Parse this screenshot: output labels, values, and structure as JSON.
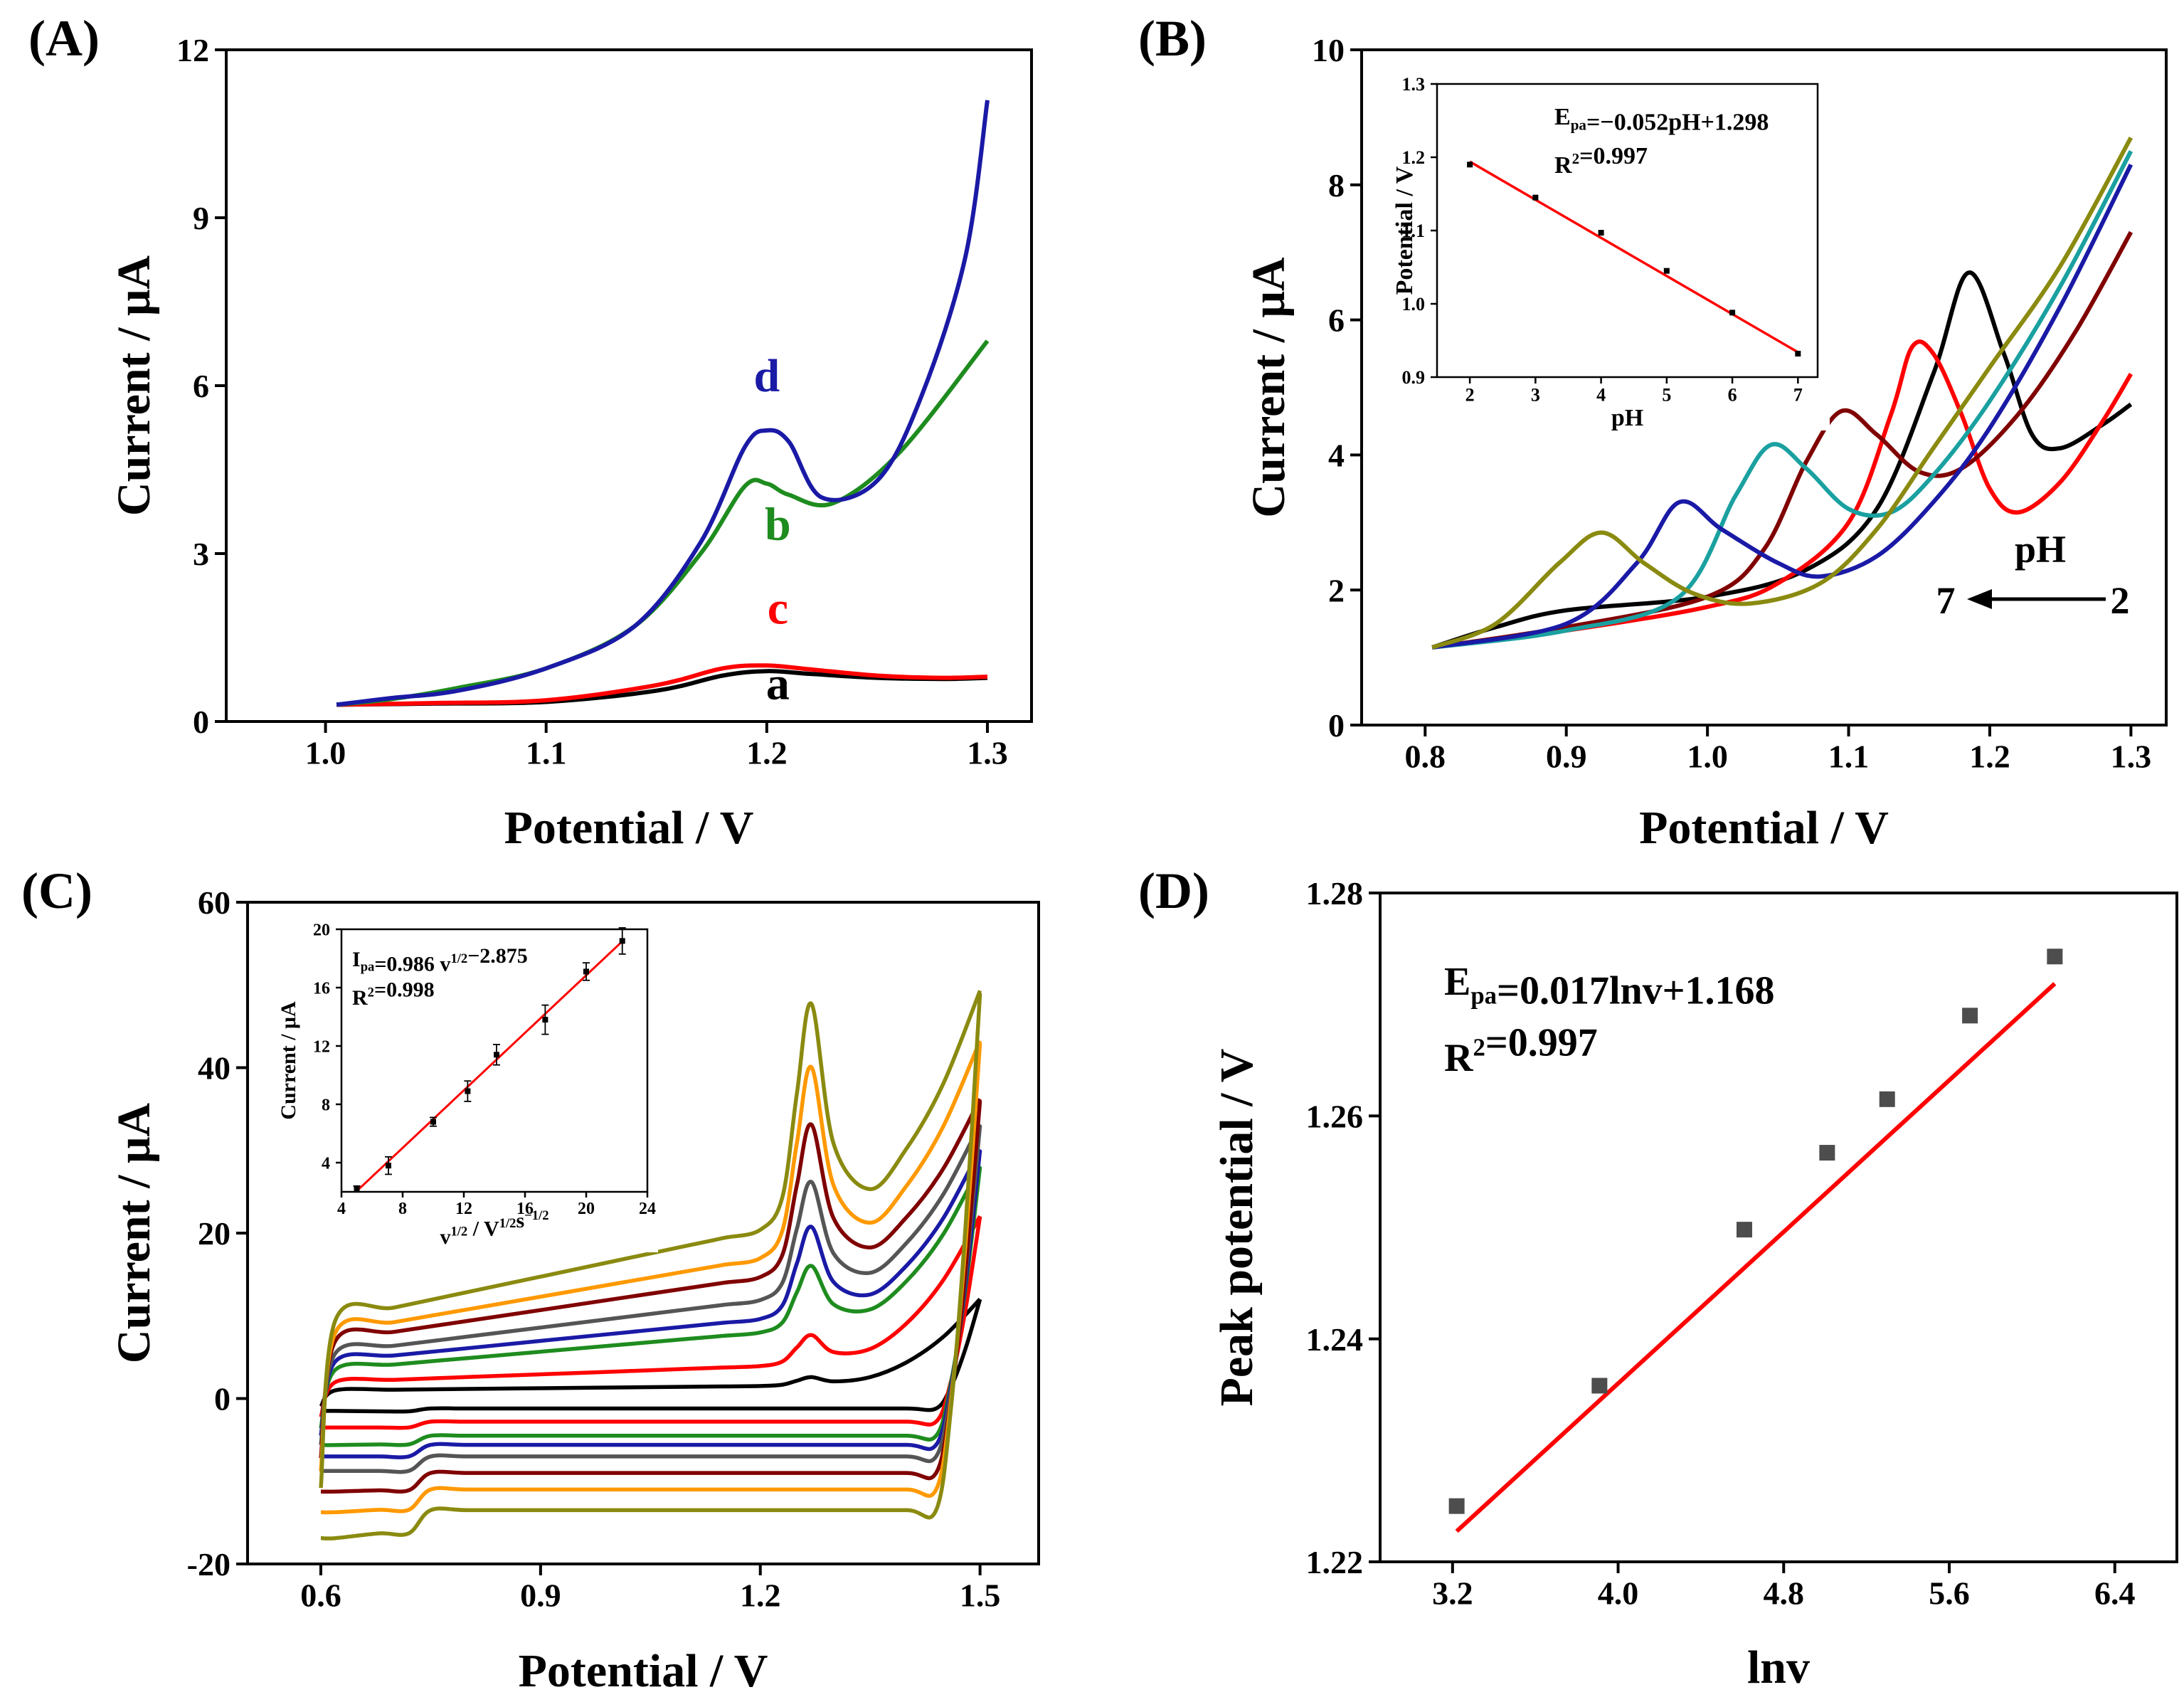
{
  "figure_kind": "four-panel electrochemistry figure",
  "chart_data": [
    {
      "panel": "(A)",
      "type": "line",
      "xlabel": "Potential / V",
      "ylabel": "Current / μA",
      "xlim": [
        0.955,
        1.32
      ],
      "ylim": [
        0,
        12
      ],
      "xticks": [
        1.0,
        1.1,
        1.2,
        1.3
      ],
      "yticks": [
        0,
        3,
        6,
        9,
        12
      ],
      "xtick_labels": [
        "1.0",
        "1.1",
        "1.2",
        "1.3"
      ],
      "ytick_labels": [
        "0",
        "3",
        "6",
        "9",
        "12"
      ],
      "series": [
        {
          "name": "a",
          "color": "#000000",
          "x": [
            1.005,
            1.05,
            1.1,
            1.15,
            1.18,
            1.2,
            1.22,
            1.25,
            1.28,
            1.3
          ],
          "y": [
            0.3,
            0.32,
            0.35,
            0.55,
            0.82,
            0.9,
            0.85,
            0.78,
            0.76,
            0.78
          ]
        },
        {
          "name": "c",
          "color": "#ff0000",
          "x": [
            1.005,
            1.05,
            1.1,
            1.15,
            1.18,
            1.2,
            1.22,
            1.25,
            1.28,
            1.3
          ],
          "y": [
            0.3,
            0.33,
            0.38,
            0.65,
            0.95,
            1.0,
            0.93,
            0.82,
            0.78,
            0.8
          ]
        },
        {
          "name": "b",
          "color": "#1e8c1e",
          "x": [
            1.005,
            1.03,
            1.06,
            1.1,
            1.14,
            1.17,
            1.19,
            1.2,
            1.21,
            1.23,
            1.26,
            1.3
          ],
          "y": [
            0.3,
            0.4,
            0.6,
            0.95,
            1.7,
            3.0,
            4.2,
            4.25,
            4.05,
            3.9,
            4.8,
            6.8
          ]
        },
        {
          "name": "d",
          "color": "#1a1aa6",
          "x": [
            1.005,
            1.03,
            1.06,
            1.1,
            1.14,
            1.17,
            1.19,
            1.2,
            1.21,
            1.225,
            1.25,
            1.27,
            1.29,
            1.3
          ],
          "y": [
            0.3,
            0.42,
            0.55,
            0.95,
            1.7,
            3.2,
            4.9,
            5.2,
            5.0,
            4.0,
            4.3,
            5.8,
            8.3,
            11.1
          ]
        }
      ],
      "curve_labels": [
        {
          "text": "d",
          "x": 1.2,
          "y": 5.9,
          "color": "#1a1aa6"
        },
        {
          "text": "b",
          "x": 1.205,
          "y": 3.25,
          "color": "#1e8c1e"
        },
        {
          "text": "c",
          "x": 1.205,
          "y": 1.75,
          "color": "#ff0000"
        },
        {
          "text": "a",
          "x": 1.205,
          "y": 0.4,
          "color": "#000000"
        }
      ]
    },
    {
      "panel": "(B)",
      "type": "line",
      "xlabel": "Potential / V",
      "ylabel": "Current / μA",
      "xlim": [
        0.755,
        1.325
      ],
      "ylim": [
        0,
        10
      ],
      "xticks": [
        0.8,
        0.9,
        1.0,
        1.1,
        1.2,
        1.3
      ],
      "yticks": [
        0,
        2,
        4,
        6,
        8,
        10
      ],
      "xtick_labels": [
        "0.8",
        "0.9",
        "1.0",
        "1.1",
        "1.2",
        "1.3"
      ],
      "ytick_labels": [
        "0",
        "2",
        "4",
        "6",
        "8",
        "10"
      ],
      "series": [
        {
          "name": "pH 2",
          "color": "#000000",
          "x": [
            0.805,
            0.85,
            0.9,
            1.0,
            1.07,
            1.12,
            1.16,
            1.185,
            1.21,
            1.23,
            1.25,
            1.28,
            1.3
          ],
          "y": [
            1.15,
            1.45,
            1.7,
            1.9,
            2.3,
            3.2,
            5.2,
            6.7,
            5.5,
            4.3,
            4.1,
            4.45,
            4.75
          ]
        },
        {
          "name": "pH 3",
          "color": "#ff0000",
          "x": [
            0.805,
            0.9,
            1.0,
            1.05,
            1.1,
            1.13,
            1.145,
            1.16,
            1.18,
            1.2,
            1.22,
            1.25,
            1.28,
            1.3
          ],
          "y": [
            1.15,
            1.4,
            1.75,
            2.1,
            3.0,
            4.6,
            5.6,
            5.5,
            4.6,
            3.5,
            3.15,
            3.6,
            4.5,
            5.2
          ]
        },
        {
          "name": "pH 4",
          "color": "#800000",
          "x": [
            0.805,
            0.9,
            1.0,
            1.04,
            1.07,
            1.095,
            1.12,
            1.15,
            1.18,
            1.22,
            1.26,
            1.3
          ],
          "y": [
            1.15,
            1.45,
            1.9,
            2.6,
            3.9,
            4.65,
            4.3,
            3.75,
            3.8,
            4.6,
            5.8,
            7.3
          ]
        },
        {
          "name": "pH 5",
          "color": "#1aa0a0",
          "x": [
            0.805,
            0.9,
            0.98,
            1.02,
            1.045,
            1.07,
            1.1,
            1.13,
            1.16,
            1.2,
            1.25,
            1.3
          ],
          "y": [
            1.15,
            1.4,
            1.9,
            3.4,
            4.15,
            3.8,
            3.2,
            3.15,
            3.7,
            4.8,
            6.5,
            8.5
          ]
        },
        {
          "name": "pH 6",
          "color": "#1a1aa6",
          "x": [
            0.805,
            0.9,
            0.95,
            0.98,
            1.01,
            1.05,
            1.08,
            1.12,
            1.16,
            1.2,
            1.25,
            1.3
          ],
          "y": [
            1.15,
            1.5,
            2.4,
            3.3,
            2.9,
            2.4,
            2.2,
            2.5,
            3.3,
            4.4,
            6.2,
            8.3
          ]
        },
        {
          "name": "pH 7",
          "color": "#8a8a10",
          "x": [
            0.805,
            0.85,
            0.895,
            0.925,
            0.955,
            0.99,
            1.03,
            1.08,
            1.12,
            1.16,
            1.2,
            1.25,
            1.3
          ],
          "y": [
            1.15,
            1.5,
            2.4,
            2.85,
            2.4,
            1.95,
            1.8,
            2.1,
            2.9,
            4.1,
            5.3,
            6.8,
            8.7
          ]
        }
      ],
      "annotation_title": "pH",
      "annotation_left": "7",
      "annotation_right": "2",
      "inset": {
        "type": "scatter",
        "xlabel": "pH",
        "ylabel": "Potential / V",
        "xlim": [
          1.5,
          7.3
        ],
        "ylim": [
          0.9,
          1.3
        ],
        "xticks": [
          2,
          3,
          4,
          5,
          6,
          7
        ],
        "yticks": [
          0.9,
          1.0,
          1.1,
          1.2,
          1.3
        ],
        "xtick_labels": [
          "2",
          "3",
          "4",
          "5",
          "6",
          "7"
        ],
        "ytick_labels": [
          "0.9",
          "1.0",
          "1.1",
          "1.2",
          "1.3"
        ],
        "x": [
          2,
          3,
          4,
          5,
          6,
          7
        ],
        "y": [
          1.19,
          1.145,
          1.097,
          1.045,
          0.988,
          0.932
        ],
        "fit": {
          "slope": -0.052,
          "intercept": 1.298
        },
        "equation_label": "E",
        "equation_sub": "pa",
        "equation_rest": "=−0.052pH+1.298",
        "r2_main": "R",
        "r2_sup": "2",
        "r2_rest": "=0.997"
      }
    },
    {
      "panel": "(C)",
      "type": "line",
      "xlabel": "Potential / V",
      "ylabel": "Current / μA",
      "xlim": [
        0.5,
        1.58
      ],
      "ylim": [
        -20,
        60
      ],
      "xticks": [
        0.6,
        0.9,
        1.2,
        1.5
      ],
      "yticks": [
        -20,
        0,
        20,
        40,
        60
      ],
      "xtick_labels": [
        "0.6",
        "0.9",
        "1.2",
        "1.5"
      ],
      "ytick_labels": [
        "-20",
        "0",
        "20",
        "40",
        "60"
      ],
      "cv_scans": [
        {
          "color": "#000000",
          "base_up": 1.0,
          "slope": 0.4,
          "peak": 1.0,
          "base_down": -1.2,
          "end_up": 12
        },
        {
          "color": "#ff0000",
          "base_up": 2.0,
          "slope": 1.5,
          "peak": 3.5,
          "base_down": -2.8,
          "end_up": 22
        },
        {
          "color": "#1e8c1e",
          "base_up": 3.5,
          "slope": 3.5,
          "peak": 7.5,
          "base_down": -4.5,
          "end_up": 28
        },
        {
          "color": "#1a1aa6",
          "base_up": 4.5,
          "slope": 4.0,
          "peak": 10.5,
          "base_down": -5.6,
          "end_up": 30
        },
        {
          "color": "#555555",
          "base_up": 5.5,
          "slope": 5.0,
          "peak": 13.5,
          "base_down": -7.0,
          "end_up": 33
        },
        {
          "color": "#800000",
          "base_up": 7.0,
          "slope": 6.0,
          "peak": 17.5,
          "base_down": -9.0,
          "end_up": 36
        },
        {
          "color": "#ff9900",
          "base_up": 8.0,
          "slope": 7.0,
          "peak": 22.0,
          "base_down": -11.0,
          "end_up": 43
        },
        {
          "color": "#8a8a10",
          "base_up": 9.5,
          "slope": 8.5,
          "peak": 26.0,
          "base_down": -13.5,
          "end_up": 49
        }
      ],
      "inset": {
        "type": "scatter",
        "xlabel_main": "v",
        "xlabel_sup1": "1/2",
        "xlabel_mid": " / V",
        "xlabel_sup2": "1/2",
        "xlabel_s": "s",
        "xlabel_sup3": "−1/2",
        "ylabel": "Current / μA",
        "xlim": [
          4,
          24
        ],
        "ylim": [
          2,
          20
        ],
        "xticks": [
          4,
          8,
          12,
          16,
          20,
          24
        ],
        "yticks": [
          4,
          8,
          12,
          16,
          20
        ],
        "xtick_labels": [
          "4",
          "8",
          "12",
          "16",
          "20",
          "24"
        ],
        "ytick_labels": [
          "4",
          "8",
          "12",
          "16",
          "20"
        ],
        "x": [
          5.0,
          7.07,
          10.0,
          12.25,
          14.14,
          17.32,
          20.0,
          22.36
        ],
        "y": [
          2.2,
          3.8,
          6.8,
          8.9,
          11.4,
          13.8,
          17.1,
          19.2
        ],
        "err": [
          0.2,
          0.6,
          0.3,
          0.7,
          0.7,
          1.0,
          0.6,
          0.9
        ],
        "fit": {
          "slope": 0.986,
          "intercept": -2.875
        },
        "equation_label": "I",
        "equation_sub": "pa",
        "equation_mid": "=0.986 v",
        "equation_sup": "1/2",
        "equation_rest": "−2.875",
        "r2_main": "R",
        "r2_sup": "2",
        "r2_rest": "=0.998"
      }
    },
    {
      "panel": "(D)",
      "type": "scatter",
      "xlabel": "lnv",
      "ylabel": "Peak potential / V",
      "xlim": [
        2.85,
        6.7
      ],
      "ylim": [
        1.22,
        1.28
      ],
      "xticks": [
        3.2,
        4.0,
        4.8,
        5.6,
        6.4
      ],
      "yticks": [
        1.22,
        1.24,
        1.26,
        1.28
      ],
      "xtick_labels": [
        "3.2",
        "4.0",
        "4.8",
        "5.6",
        "6.4"
      ],
      "ytick_labels": [
        "1.22",
        "1.24",
        "1.26",
        "1.28"
      ],
      "x": [
        3.22,
        3.91,
        4.61,
        5.01,
        5.3,
        5.7,
        6.11
      ],
      "y": [
        1.225,
        1.2358,
        1.2498,
        1.2567,
        1.2615,
        1.269,
        1.2743
      ],
      "fit": {
        "slope": 0.017,
        "intercept": 1.168,
        "x_range": [
          3.22,
          6.11
        ]
      },
      "equation_label": "E",
      "equation_sub": "pa",
      "equation_rest": "=0.017lnv+1.168",
      "r2_main": "R",
      "r2_sup": "2",
      "r2_rest": "=0.997"
    }
  ]
}
